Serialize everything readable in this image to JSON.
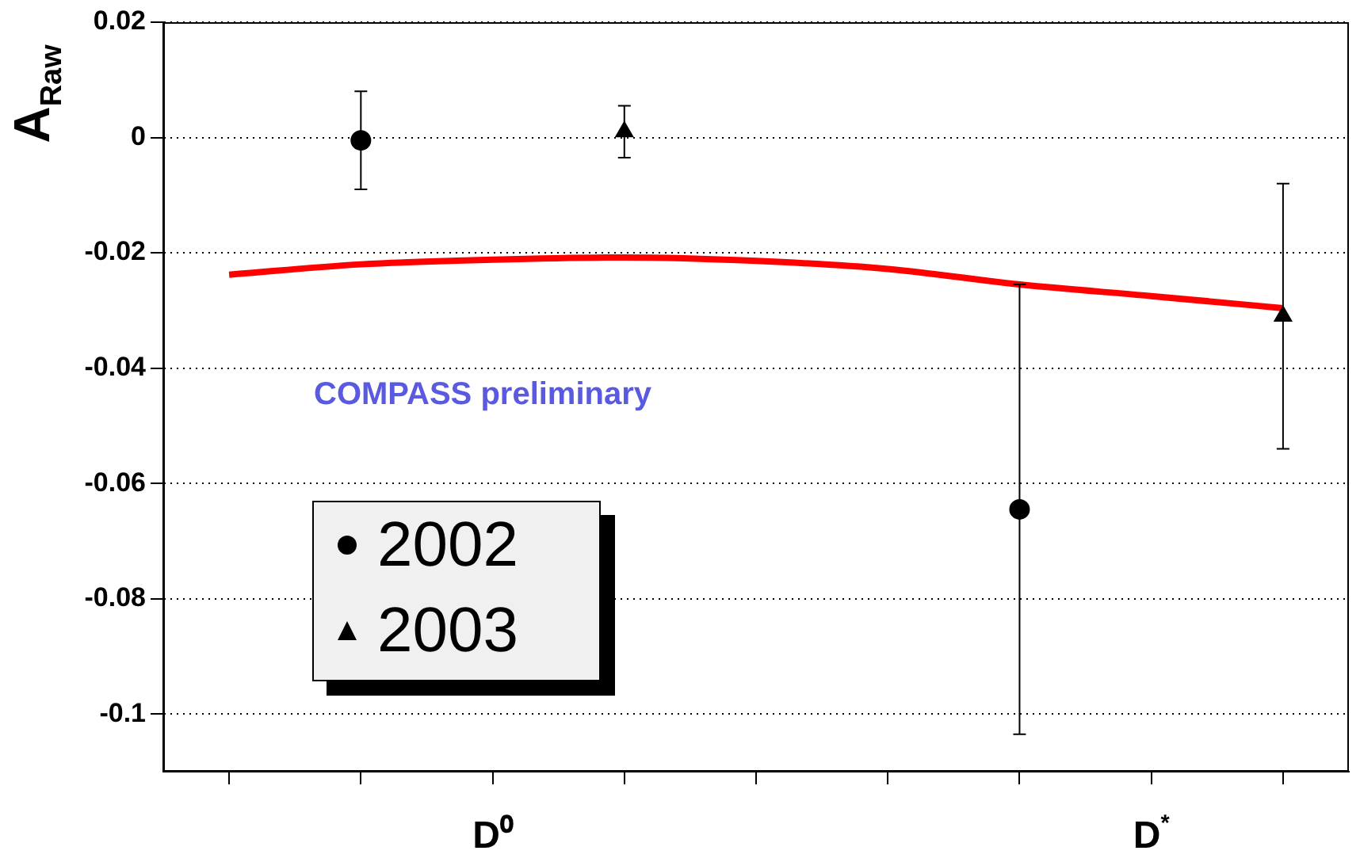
{
  "chart_data": {
    "type": "scatter",
    "ylabel": "A$_{Raw}$",
    "annotations": [
      "COMPASS preliminary"
    ],
    "categories": [
      null,
      null,
      "D⁰",
      null,
      null,
      null,
      null,
      "D$^{*}$",
      null
    ],
    "ylim": [
      -0.11,
      0.02
    ],
    "yticks": [
      0.02,
      0,
      -0.02,
      -0.04,
      -0.06,
      -0.08,
      -0.1
    ],
    "grid": "y",
    "legend": "bottom left",
    "series": [
      {
        "name": "2002",
        "marker": "circle",
        "color": "#000000",
        "values": [
          null,
          -0.0005,
          null,
          null,
          null,
          null,
          -0.0645,
          null,
          null
        ],
        "errors": [
          null,
          0.0085,
          null,
          null,
          null,
          null,
          0.039,
          null,
          null
        ]
      },
      {
        "name": "2003",
        "marker": "triangle",
        "color": "#000000",
        "values": [
          null,
          null,
          null,
          0.001,
          null,
          null,
          null,
          null,
          -0.031
        ],
        "errors": [
          null,
          null,
          null,
          0.0045,
          null,
          null,
          null,
          null,
          0.023
        ]
      },
      {
        "type": "line",
        "marker": "none",
        "line_style": "solid",
        "color": "#ff0000",
        "values": [
          -0.0238,
          -0.022,
          -0.0212,
          -0.0208,
          -0.0214,
          -0.0228,
          -0.0255,
          -0.0275,
          -0.0296
        ]
      }
    ]
  }
}
